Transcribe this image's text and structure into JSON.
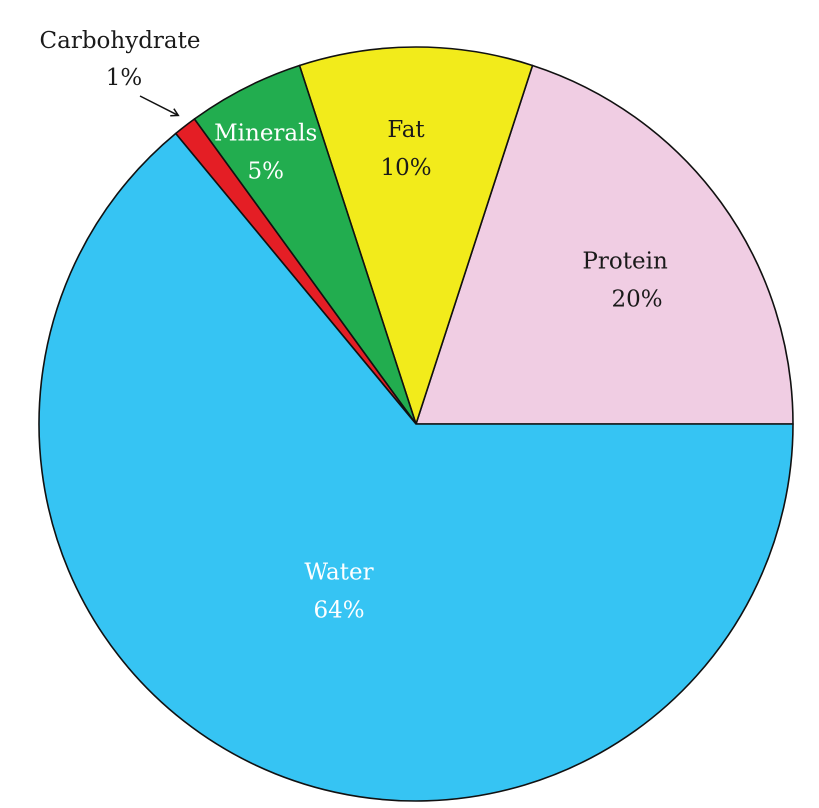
{
  "chart_data": {
    "type": "pie",
    "start_angle_deg": 0,
    "direction": "counterclockwise",
    "slices": [
      {
        "name": "Protein",
        "value": 20,
        "label": "20%",
        "color": "#f0cde3",
        "text_color": "#1a1a1a"
      },
      {
        "name": "Fat",
        "value": 10,
        "label": "10%",
        "color": "#f2eb1b",
        "text_color": "#1a1a1a"
      },
      {
        "name": "Minerals",
        "value": 5,
        "label": "5%",
        "color": "#22ad4f",
        "text_color": "#ffffff"
      },
      {
        "name": "Carbohydrate",
        "value": 1,
        "label": "1%",
        "color": "#e41e25",
        "text_color": "#1a1a1a",
        "callout": true
      },
      {
        "name": "Water",
        "value": 64,
        "label": "64%",
        "color": "#36c4f3",
        "text_color": "#ffffff"
      }
    ]
  }
}
